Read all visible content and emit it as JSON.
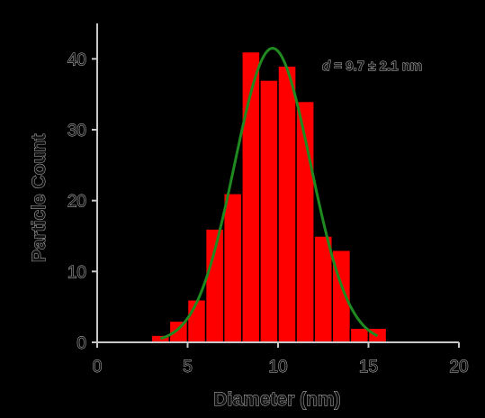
{
  "chart_data": {
    "type": "bar",
    "xlabel": "Diameter (nm)",
    "ylabel": "Particle Count",
    "xlim": [
      0,
      20
    ],
    "ylim": [
      0,
      45
    ],
    "x_ticks": [
      0,
      5,
      10,
      15,
      20
    ],
    "y_ticks": [
      0,
      10,
      20,
      30,
      40
    ],
    "bin_width": 1,
    "bins": [
      {
        "x0": 3,
        "x1": 4,
        "count": 1
      },
      {
        "x0": 4,
        "x1": 5,
        "count": 3
      },
      {
        "x0": 5,
        "x1": 6,
        "count": 6
      },
      {
        "x0": 6,
        "x1": 7,
        "count": 16
      },
      {
        "x0": 7,
        "x1": 8,
        "count": 21
      },
      {
        "x0": 8,
        "x1": 9,
        "count": 41
      },
      {
        "x0": 9,
        "x1": 10,
        "count": 37
      },
      {
        "x0": 10,
        "x1": 11,
        "count": 39
      },
      {
        "x0": 11,
        "x1": 12,
        "count": 34
      },
      {
        "x0": 12,
        "x1": 13,
        "count": 15
      },
      {
        "x0": 13,
        "x1": 14,
        "count": 13
      },
      {
        "x0": 14,
        "x1": 15,
        "count": 2
      },
      {
        "x0": 15,
        "x1": 16,
        "count": 2
      }
    ],
    "fit": {
      "type": "gaussian",
      "mean": 9.7,
      "sd": 2.1,
      "amplitude": 41.5,
      "x_range": [
        3.5,
        15.5
      ]
    },
    "annotation": {
      "symbol": "d",
      "text": " = 9.7 ±  2.1 nm"
    },
    "colors": {
      "bars": "#ff0000",
      "bar_edge": "#000000",
      "fit_line": "#1f8a1f",
      "axes": "#c8c8c8",
      "background": "#000000"
    }
  }
}
